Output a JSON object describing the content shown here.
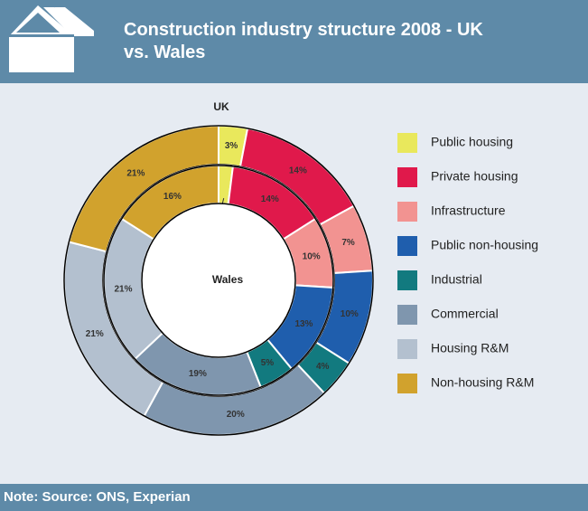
{
  "chart_data": {
    "type": "donut",
    "title": "Construction industry structure 2008 - UK vs. Wales",
    "note": "Note: Source: ONS, Experian",
    "categories": [
      "Public housing",
      "Private housing",
      "Infrastructure",
      "Public non-housing",
      "Industrial",
      "Commercial",
      "Housing R&M",
      "Non-housing R&M"
    ],
    "colors": [
      "#e9e85c",
      "#e0194b",
      "#f29391",
      "#1f5ead",
      "#127a7f",
      "#7f96ae",
      "#b3c0cf",
      "#d1a22d"
    ],
    "series": [
      {
        "name": "UK",
        "values": [
          3,
          14,
          7,
          10,
          4,
          20,
          21,
          21
        ],
        "value_labels": [
          "3%",
          "14%",
          "7%",
          "10%",
          "4%",
          "20%",
          "21%",
          "21%"
        ]
      },
      {
        "name": "Wales",
        "values": [
          2,
          14,
          10,
          13,
          5,
          19,
          21,
          16
        ],
        "value_labels": [
          "2%",
          "14%",
          "10%",
          "13%",
          "5%",
          "19%",
          "21%",
          "16%"
        ]
      }
    ]
  }
}
